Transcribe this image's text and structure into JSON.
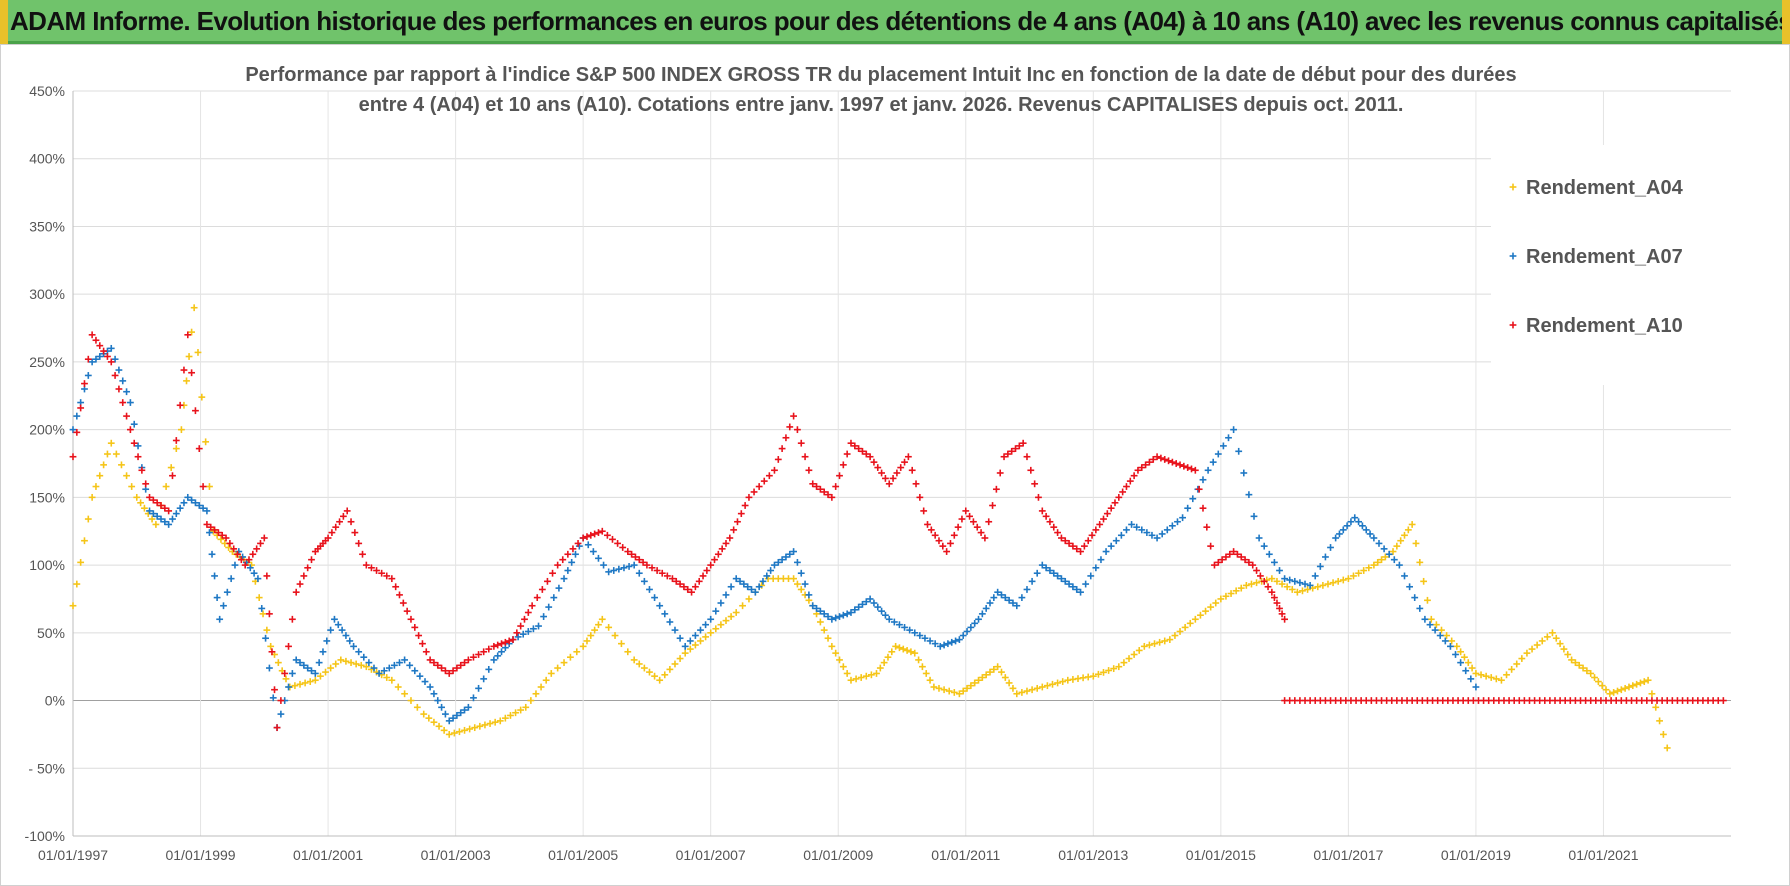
{
  "banner": {
    "text": "ADAM Informe. Evolution historique des performances en euros pour des détentions de 4 ans (A04) à 10 ans (A10) avec les revenus connus capitalisés"
  },
  "chart_data": {
    "type": "scatter",
    "title_line1": "Performance par rapport à l'indice S&P 500 INDEX GROSS TR  du placement Intuit Inc en fonction de la date de début pour des durées",
    "title_line2": "entre 4 (A04) et 10 ans (A10). Cotations entre janv. 1997 et janv. 2026. Revenus CAPITALISES depuis oct. 2011.",
    "marker": "+",
    "ylim": [
      -100,
      450
    ],
    "y_ticks": [
      -100,
      -50,
      0,
      50,
      100,
      150,
      200,
      250,
      300,
      350,
      400,
      450
    ],
    "y_tick_labels": [
      "-100%",
      "- 50%",
      "0%",
      "50%",
      "100%",
      "150%",
      "200%",
      "250%",
      "300%",
      "350%",
      "400%",
      "450%"
    ],
    "xlim": [
      1997.0,
      2023.0
    ],
    "x_ticks": [
      1997,
      1999,
      2001,
      2003,
      2005,
      2007,
      2009,
      2011,
      2013,
      2015,
      2017,
      2019,
      2021
    ],
    "x_tick_labels": [
      "01/01/1997",
      "01/01/1999",
      "01/01/2001",
      "01/01/2003",
      "01/01/2005",
      "01/01/2007",
      "01/01/2009",
      "01/01/2011",
      "01/01/2013",
      "01/01/2015",
      "01/01/2017",
      "01/01/2019",
      "01/01/2021"
    ],
    "legend_position": "top-right",
    "series": [
      {
        "name": "Rendement_A04",
        "color": "#f5c518",
        "x": [
          1997.0,
          1997.3,
          1997.6,
          1998.0,
          1998.3,
          1998.7,
          1998.9,
          1999.2,
          1999.5,
          1999.8,
          2000.1,
          2000.4,
          2000.8,
          2001.2,
          2001.6,
          2002.0,
          2002.5,
          2002.9,
          2003.3,
          2003.7,
          2004.1,
          2004.5,
          2005.0,
          2005.3,
          2005.8,
          2006.2,
          2006.6,
          2007.0,
          2007.4,
          2007.9,
          2008.3,
          2008.6,
          2008.9,
          2009.2,
          2009.6,
          2009.9,
          2010.2,
          2010.5,
          2010.9,
          2011.2,
          2011.5,
          2011.8,
          2012.2,
          2012.6,
          2013.0,
          2013.4,
          2013.8,
          2014.2,
          2014.6,
          2015.0,
          2015.4,
          2015.8,
          2016.2,
          2016.6,
          2017.0,
          2017.4,
          2017.7,
          2018.0,
          2018.3,
          2018.7,
          2019.0,
          2019.4,
          2019.8,
          2020.2,
          2020.5,
          2020.8,
          2021.1,
          2021.4,
          2021.7,
          2022.0
        ],
        "y": [
          70,
          150,
          190,
          150,
          130,
          200,
          290,
          125,
          110,
          100,
          40,
          10,
          15,
          30,
          25,
          15,
          -10,
          -25,
          -20,
          -15,
          -5,
          20,
          40,
          60,
          30,
          15,
          35,
          50,
          65,
          90,
          90,
          70,
          40,
          15,
          20,
          40,
          35,
          10,
          5,
          15,
          25,
          5,
          10,
          15,
          18,
          25,
          40,
          45,
          60,
          75,
          85,
          90,
          80,
          85,
          90,
          100,
          110,
          130,
          60,
          40,
          20,
          15,
          35,
          50,
          30,
          20,
          5,
          10,
          15,
          -35
        ]
      },
      {
        "name": "Rendement_A07",
        "color": "#1f78c4",
        "x": [
          1997.0,
          1997.3,
          1997.6,
          1997.9,
          1998.2,
          1998.5,
          1998.8,
          1999.1,
          1999.3,
          1999.6,
          1999.9,
          2000.2,
          2000.5,
          2000.8,
          2001.1,
          2001.4,
          2001.8,
          2002.2,
          2002.6,
          2002.9,
          2003.2,
          2003.6,
          2003.9,
          2004.3,
          2004.7,
          2005.0,
          2005.4,
          2005.8,
          2006.2,
          2006.6,
          2007.0,
          2007.4,
          2007.7,
          2008.0,
          2008.3,
          2008.6,
          2008.9,
          2009.2,
          2009.5,
          2009.8,
          2010.2,
          2010.6,
          2010.9,
          2011.2,
          2011.5,
          2011.8,
          2012.2,
          2012.5,
          2012.8,
          2013.2,
          2013.6,
          2014.0,
          2014.4,
          2014.8,
          2015.2,
          2015.6,
          2016.0,
          2016.4,
          2016.8,
          2017.1,
          2017.4,
          2017.8,
          2018.2,
          2018.6,
          2019.0
        ],
        "y": [
          200,
          250,
          260,
          220,
          140,
          130,
          150,
          140,
          60,
          110,
          90,
          -20,
          30,
          20,
          60,
          40,
          20,
          30,
          10,
          -15,
          -5,
          30,
          45,
          55,
          90,
          120,
          95,
          100,
          70,
          40,
          60,
          90,
          80,
          100,
          110,
          70,
          60,
          65,
          75,
          60,
          50,
          40,
          45,
          60,
          80,
          70,
          100,
          90,
          80,
          110,
          130,
          120,
          135,
          170,
          200,
          120,
          90,
          85,
          120,
          135,
          120,
          100,
          60,
          40,
          10
        ]
      },
      {
        "name": "Rendement_A10",
        "color": "#e8131c",
        "x": [
          1997.0,
          1997.3,
          1997.6,
          1997.9,
          1998.2,
          1998.5,
          1998.8,
          1999.1,
          1999.4,
          1999.7,
          2000.0,
          2000.2,
          2000.5,
          2000.8,
          2001.0,
          2001.3,
          2001.6,
          2002.0,
          2002.3,
          2002.6,
          2002.9,
          2003.2,
          2003.6,
          2003.9,
          2004.2,
          2004.6,
          2005.0,
          2005.3,
          2005.7,
          2006.0,
          2006.4,
          2006.7,
          2007.0,
          2007.3,
          2007.6,
          2008.0,
          2008.3,
          2008.6,
          2008.9,
          2009.2,
          2009.5,
          2009.8,
          2010.1,
          2010.4,
          2010.7,
          2011.0,
          2011.3,
          2011.6,
          2011.9,
          2012.2,
          2012.5,
          2012.8,
          2013.1,
          2013.4,
          2013.7,
          2014.0,
          2014.3,
          2014.6,
          2014.9,
          2015.2,
          2015.5,
          2015.8,
          2016.0
        ],
        "y": [
          180,
          270,
          250,
          200,
          150,
          140,
          270,
          130,
          120,
          100,
          120,
          -20,
          80,
          110,
          120,
          140,
          100,
          90,
          60,
          30,
          20,
          30,
          40,
          45,
          70,
          100,
          120,
          125,
          110,
          100,
          90,
          80,
          100,
          120,
          150,
          170,
          210,
          160,
          150,
          190,
          180,
          160,
          180,
          130,
          110,
          140,
          120,
          180,
          190,
          140,
          120,
          110,
          130,
          150,
          170,
          180,
          175,
          170,
          100,
          110,
          100,
          80,
          60
        ]
      }
    ],
    "flat_segment": {
      "series": "Rendement_A10",
      "x_from": 2016.0,
      "x_to": 2022.9,
      "y": 0
    }
  }
}
